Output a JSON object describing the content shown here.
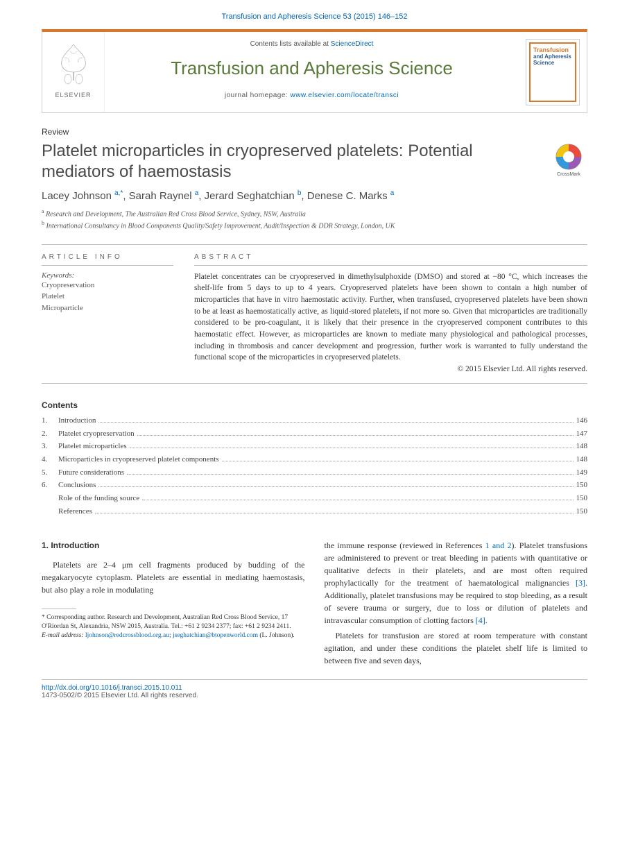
{
  "running_header": "Transfusion and Apheresis Science 53 (2015) 146–152",
  "masthead": {
    "elsevier_label": "ELSEVIER",
    "contents_prefix": "Contents lists available at ",
    "contents_link": "ScienceDirect",
    "journal_name": "Transfusion and Apheresis Science",
    "homepage_prefix": "journal homepage: ",
    "homepage_link": "www.elsevier.com/locate/transci",
    "cover_title1": "Transfusion",
    "cover_title2": "and Apheresis Science"
  },
  "article": {
    "type": "Review",
    "title": "Platelet microparticles in cryopreserved platelets: Potential mediators of haemostasis",
    "authors_html_parts": [
      {
        "name": "Lacey Johnson ",
        "sup": "a,*"
      },
      {
        "name": ", Sarah Raynel ",
        "sup": "a"
      },
      {
        "name": ", Jerard Seghatchian ",
        "sup": "b"
      },
      {
        "name": ", Denese C. Marks ",
        "sup": "a"
      }
    ],
    "affiliations": [
      {
        "sup": "a",
        "text": " Research and Development, The Australian Red Cross Blood Service, Sydney, NSW, Australia"
      },
      {
        "sup": "b",
        "text": " International Consultancy in Blood Components Quality/Safety Improvement, Audit/Inspection & DDR Strategy, London, UK"
      }
    ]
  },
  "info": {
    "section_label": "ARTICLE INFO",
    "keywords_label": "Keywords:",
    "keywords": [
      "Cryopreservation",
      "Platelet",
      "Microparticle"
    ]
  },
  "abstract": {
    "section_label": "ABSTRACT",
    "text": "Platelet concentrates can be cryopreserved in dimethylsulphoxide (DMSO) and stored at −80 °C, which increases the shelf-life from 5 days to up to 4 years. Cryopreserved platelets have been shown to contain a high number of microparticles that have in vitro haemostatic activity. Further, when transfused, cryopreserved platelets have been shown to be at least as haemostatically active, as liquid-stored platelets, if not more so. Given that microparticles are traditionally considered to be pro-coagulant, it is likely that their presence in the cryopreserved component contributes to this haemostatic effect. However, as microparticles are known to mediate many physiological and pathological processes, including in thrombosis and cancer development and progression, further work is warranted to fully understand the functional scope of the microparticles in cryopreserved platelets.",
    "copyright": "© 2015 Elsevier Ltd. All rights reserved."
  },
  "toc": {
    "heading": "Contents",
    "items": [
      {
        "num": "1.",
        "label": "Introduction",
        "page": "146"
      },
      {
        "num": "2.",
        "label": "Platelet cryopreservation",
        "page": "147"
      },
      {
        "num": "3.",
        "label": "Platelet microparticles",
        "page": "148"
      },
      {
        "num": "4.",
        "label": "Microparticles in cryopreserved platelet components",
        "page": "148"
      },
      {
        "num": "5.",
        "label": "Future considerations",
        "page": "149"
      },
      {
        "num": "6.",
        "label": "Conclusions",
        "page": "150"
      },
      {
        "num": "",
        "label": "Role of the funding source",
        "page": "150",
        "indent": true
      },
      {
        "num": "",
        "label": "References",
        "page": "150",
        "indent": true
      }
    ]
  },
  "body": {
    "section_heading": "1. Introduction",
    "col1_para1": "Platelets are 2–4 μm cell fragments produced by budding of the megakaryocyte cytoplasm. Platelets are essential in mediating haemostasis, but also play a role in modulating",
    "col2_para1_pre": "the immune response (reviewed in References ",
    "col2_para1_ref1": "1 and 2",
    "col2_para1_mid": "). Platelet transfusions are administered to prevent or treat bleeding in patients with quantitative or qualitative defects in their platelets, and are most often required prophylactically for the treatment of haematological malignancies ",
    "col2_para1_ref2": "[3]",
    "col2_para1_post1": ". Additionally, platelet transfusions may be required to stop bleeding, as a result of severe trauma or surgery, due to loss or dilution of platelets and intravascular consumption of clotting factors ",
    "col2_para1_ref3": "[4]",
    "col2_para1_post2": ".",
    "col2_para2": "Platelets for transfusion are stored at room temperature with constant agitation, and under these conditions the platelet shelf life is limited to between five and seven days,"
  },
  "footnotes": {
    "corresponding": "* Corresponding author. Research and Development, Australian Red Cross Blood Service, 17 O'Riordan St, Alexandria, NSW 2015, Australia. Tel.: +61 2 9234 2377; fax: +61 2 9234 2411.",
    "email_label": "E-mail address: ",
    "email1": "ljohnson@redcrossblood.org.au",
    "email_sep": "; ",
    "email2": "jseghatchian@btopenworld.com",
    "email_suffix": " (L. Johnson)."
  },
  "footer": {
    "doi": "http://dx.doi.org/10.1016/j.transci.2015.10.011",
    "issn_line": "1473-0502/© 2015 Elsevier Ltd. All rights reserved."
  },
  "colors": {
    "orange": "#d97628",
    "link_blue": "#0066b3",
    "journal_green": "#5a7a3a",
    "text_gray": "#4a4a4a"
  }
}
